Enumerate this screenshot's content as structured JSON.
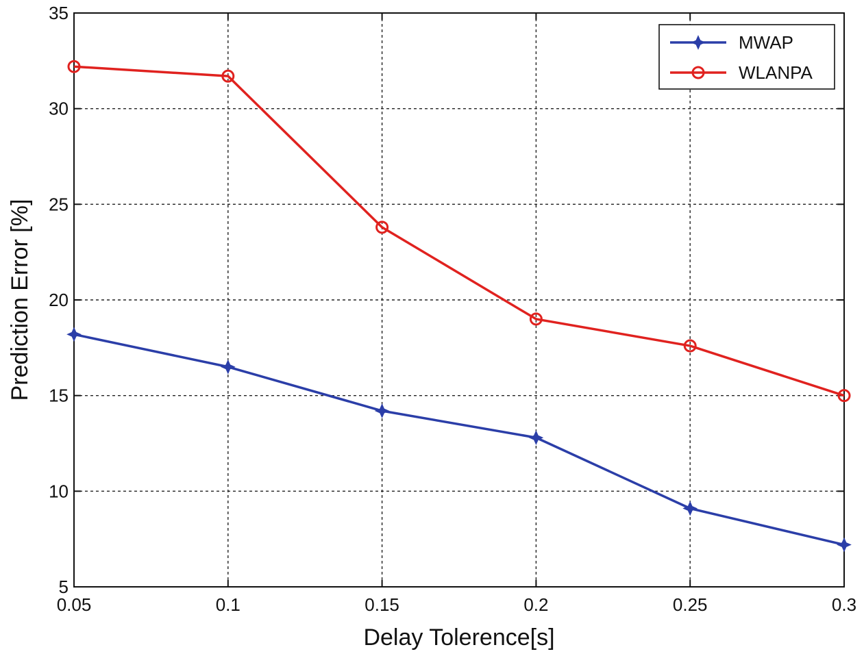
{
  "chart_data": {
    "type": "line",
    "xlabel": "Delay Tolerence[s]",
    "ylabel": "Prediction Error [%]",
    "x": [
      0.05,
      0.1,
      0.15,
      0.2,
      0.25,
      0.3
    ],
    "x_tick_labels": [
      "0.05",
      "0.1",
      "0.15",
      "0.2",
      "0.25",
      "0.3"
    ],
    "xlim": [
      0.05,
      0.3
    ],
    "y_ticks": [
      5,
      10,
      15,
      20,
      25,
      30,
      35
    ],
    "ylim": [
      5,
      35
    ],
    "grid": true,
    "legend_position": "top-right",
    "series": [
      {
        "name": "MWAP",
        "color": "#2b3ea8",
        "marker": "diamond-star",
        "values": [
          18.2,
          16.5,
          14.2,
          12.8,
          9.1,
          7.2
        ]
      },
      {
        "name": "WLANPA",
        "color": "#e0221f",
        "marker": "circle",
        "values": [
          32.2,
          31.7,
          23.8,
          19.0,
          17.6,
          15.0
        ]
      }
    ]
  }
}
